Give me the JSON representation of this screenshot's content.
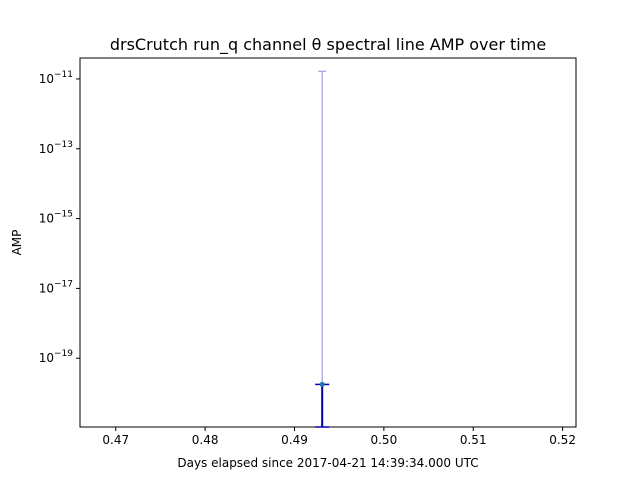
{
  "chart_data": {
    "type": "scatter",
    "title": "drsCrutch run_q channel θ spectral line AMP over time",
    "xlabel": "Days elapsed since 2017-04-21 14:39:34.000 UTC",
    "ylabel": "AMP",
    "yscale": "log",
    "xlim": [
      0.466,
      0.5215
    ],
    "ylim_exp": [
      -20.97,
      -10.4
    ],
    "x_ticks": [
      0.47,
      0.48,
      0.49,
      0.5,
      0.51,
      0.52
    ],
    "x_tick_labels": [
      "0.47",
      "0.48",
      "0.49",
      "0.50",
      "0.51",
      "0.52"
    ],
    "y_ticks_exp": [
      -11,
      -13,
      -15,
      -17,
      -19
    ],
    "y_tick_labels": [
      {
        "base": "10",
        "exp": "−11"
      },
      {
        "base": "10",
        "exp": "−13"
      },
      {
        "base": "10",
        "exp": "−15"
      },
      {
        "base": "10",
        "exp": "−17"
      },
      {
        "base": "10",
        "exp": "−19"
      }
    ],
    "grid": false,
    "colors": {
      "point": "#1f77b4",
      "errorbar": "#0000aa",
      "errorbar_faint": "#a0a0f0"
    },
    "points": [
      {
        "x": 0.4931,
        "y_exp": -19.75,
        "error_high_exp": -19.75,
        "error_low_exp": -20.97,
        "error_faint_high_exp": -10.78
      }
    ]
  }
}
